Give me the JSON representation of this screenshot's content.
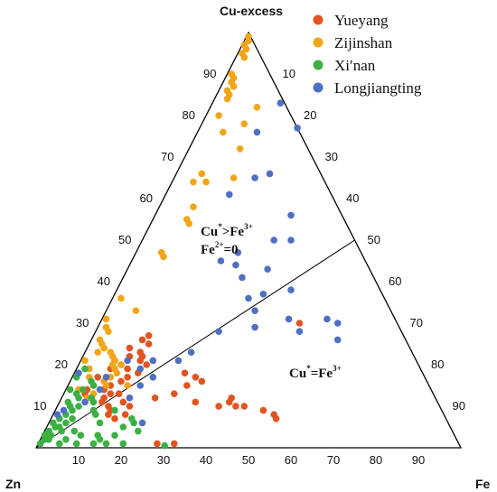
{
  "chart_data": {
    "type": "ternary-scatter",
    "axes": {
      "top": "Cu-excess",
      "left": "Zn",
      "right": "Fe"
    },
    "ticks": [
      10,
      20,
      30,
      40,
      50,
      60,
      70,
      80,
      90
    ],
    "regions": [
      {
        "main": "Cu",
        "sup1": "*",
        "rel": ">Fe",
        "sup2": "3+",
        "line2": "Fe",
        "sup3": "2+",
        "eq": "=0"
      },
      {
        "main": "Cu",
        "sup1": "*",
        "rel": "=Fe",
        "sup2": "3+"
      }
    ],
    "divider": {
      "from": "Zn",
      "to": {
        "cu": 50,
        "fe": 50
      }
    },
    "legend_position": "top-right",
    "series": [
      {
        "name": "Yueyang",
        "color": "#E2541F",
        "points": [
          {
            "cu": 24,
            "fe": 10
          },
          {
            "cu": 26,
            "fe": 12
          },
          {
            "cu": 25,
            "fe": 14
          },
          {
            "cu": 27,
            "fe": 13
          },
          {
            "cu": 23,
            "fe": 13
          },
          {
            "cu": 22,
            "fe": 11
          },
          {
            "cu": 21,
            "fe": 14
          },
          {
            "cu": 20,
            "fe": 16
          },
          {
            "cu": 18,
            "fe": 15
          },
          {
            "cu": 19,
            "fe": 12
          },
          {
            "cu": 17,
            "fe": 13
          },
          {
            "cu": 16,
            "fe": 12
          },
          {
            "cu": 15,
            "fe": 10
          },
          {
            "cu": 14,
            "fe": 9
          },
          {
            "cu": 13,
            "fe": 11
          },
          {
            "cu": 12,
            "fe": 10
          },
          {
            "cu": 11,
            "fe": 10
          },
          {
            "cu": 12,
            "fe": 7
          },
          {
            "cu": 13,
            "fe": 5
          },
          {
            "cu": 14,
            "fe": 5
          },
          {
            "cu": 15,
            "fe": 6
          },
          {
            "cu": 17,
            "fe": 6
          },
          {
            "cu": 19,
            "fe": 8
          },
          {
            "cu": 21,
            "fe": 8
          },
          {
            "cu": 20,
            "fe": 10
          },
          {
            "cu": 10,
            "fe": 12
          },
          {
            "cu": 11,
            "fe": 15
          },
          {
            "cu": 9,
            "fe": 13
          },
          {
            "cu": 8,
            "fe": 13
          },
          {
            "cu": 7,
            "fe": 15
          },
          {
            "cu": 12,
            "fe": 22
          },
          {
            "cu": 13,
            "fe": 26
          },
          {
            "cu": 15,
            "fe": 28
          },
          {
            "cu": 17,
            "fe": 29
          },
          {
            "cu": 18,
            "fe": 26
          },
          {
            "cu": 16,
            "fe": 31
          },
          {
            "cu": 11,
            "fe": 32
          },
          {
            "cu": 10,
            "fe": 38
          },
          {
            "cu": 11,
            "fe": 40
          },
          {
            "cu": 10,
            "fe": 42
          },
          {
            "cu": 12,
            "fe": 40
          },
          {
            "cu": 10,
            "fe": 44
          },
          {
            "cu": 9,
            "fe": 49
          },
          {
            "cu": 8,
            "fe": 52
          },
          {
            "cu": 7,
            "fe": 53
          },
          {
            "cu": 30,
            "fe": 47
          },
          {
            "cu": 1,
            "fe": 32
          },
          {
            "cu": 1,
            "fe": 28
          },
          {
            "cu": 22,
            "fe": 14
          },
          {
            "cu": 13,
            "fe": 13
          },
          {
            "cu": 10,
            "fe": 17
          },
          {
            "cu": 8,
            "fe": 17
          }
        ]
      },
      {
        "name": "Zijinshan",
        "color": "#F2A516",
        "points": [
          {
            "cu": 99,
            "fe": 0.5
          },
          {
            "cu": 98,
            "fe": 1
          },
          {
            "cu": 97,
            "fe": 0.5
          },
          {
            "cu": 96,
            "fe": 1.5
          },
          {
            "cu": 95,
            "fe": 1
          },
          {
            "cu": 94,
            "fe": 2
          },
          {
            "cu": 90,
            "fe": 1
          },
          {
            "cu": 89,
            "fe": 2
          },
          {
            "cu": 88,
            "fe": 2
          },
          {
            "cu": 87,
            "fe": 3
          },
          {
            "cu": 86,
            "fe": 2
          },
          {
            "cu": 85,
            "fe": 3
          },
          {
            "cu": 84,
            "fe": 3
          },
          {
            "cu": 80,
            "fe": 3
          },
          {
            "cu": 76,
            "fe": 6
          },
          {
            "cu": 78,
            "fe": 10
          },
          {
            "cu": 82,
            "fe": 11
          },
          {
            "cu": 72,
            "fe": 12
          },
          {
            "cu": 66,
            "fe": 6
          },
          {
            "cu": 64,
            "fe": 5
          },
          {
            "cu": 64,
            "fe": 8
          },
          {
            "cu": 65,
            "fe": 14
          },
          {
            "cu": 58,
            "fe": 8
          },
          {
            "cu": 55,
            "fe": 8
          },
          {
            "cu": 54,
            "fe": 9
          },
          {
            "cu": 47,
            "fe": 6
          },
          {
            "cu": 46,
            "fe": 7
          },
          {
            "cu": 36,
            "fe": 2
          },
          {
            "cu": 31,
            "fe": 1
          },
          {
            "cu": 29,
            "fe": 2
          },
          {
            "cu": 28,
            "fe": 3
          },
          {
            "cu": 26,
            "fe": 2
          },
          {
            "cu": 25,
            "fe": 3
          },
          {
            "cu": 24,
            "fe": 4
          },
          {
            "cu": 23,
            "fe": 3
          },
          {
            "cu": 23,
            "fe": 6
          },
          {
            "cu": 22,
            "fe": 7
          },
          {
            "cu": 21,
            "fe": 8
          },
          {
            "cu": 20,
            "fe": 8
          },
          {
            "cu": 20,
            "fe": 10
          },
          {
            "cu": 19,
            "fe": 9
          },
          {
            "cu": 18,
            "fe": 10
          },
          {
            "cu": 17,
            "fe": 9
          },
          {
            "cu": 16,
            "fe": 8
          },
          {
            "cu": 15,
            "fe": 9
          },
          {
            "cu": 13,
            "fe": 7
          },
          {
            "cu": 12,
            "fe": 6
          },
          {
            "cu": 19,
            "fe": 3
          },
          {
            "cu": 17,
            "fe": 4
          },
          {
            "cu": 21,
            "fe": 1
          },
          {
            "cu": 14,
            "fe": 3
          },
          {
            "cu": 33,
            "fe": 7
          },
          {
            "cu": 15,
            "fe": 14
          }
        ]
      },
      {
        "name": "Xi′nan",
        "color": "#3CB043",
        "points": [
          {
            "cu": 1,
            "fe": 0.5
          },
          {
            "cu": 2,
            "fe": 1
          },
          {
            "cu": 3,
            "fe": 0.5
          },
          {
            "cu": 2,
            "fe": 2
          },
          {
            "cu": 4,
            "fe": 1
          },
          {
            "cu": 3,
            "fe": 2
          },
          {
            "cu": 5,
            "fe": 2
          },
          {
            "cu": 6,
            "fe": 1
          },
          {
            "cu": 5,
            "fe": 3
          },
          {
            "cu": 7,
            "fe": 2
          },
          {
            "cu": 4,
            "fe": 4
          },
          {
            "cu": 6,
            "fe": 4
          },
          {
            "cu": 8,
            "fe": 3
          },
          {
            "cu": 7,
            "fe": 5
          },
          {
            "cu": 9,
            "fe": 4
          },
          {
            "cu": 10,
            "fe": 3
          },
          {
            "cu": 11,
            "fe": 2
          },
          {
            "cu": 10,
            "fe": 5
          },
          {
            "cu": 12,
            "fe": 4
          },
          {
            "cu": 13,
            "fe": 3
          },
          {
            "cu": 14,
            "fe": 4
          },
          {
            "cu": 12,
            "fe": 7
          },
          {
            "cu": 15,
            "fe": 6
          },
          {
            "cu": 16,
            "fe": 5
          },
          {
            "cu": 11,
            "fe": 8
          },
          {
            "cu": 9,
            "fe": 9
          },
          {
            "cu": 8,
            "fe": 10
          },
          {
            "cu": 1,
            "fe": 5
          },
          {
            "cu": 1,
            "fe": 9
          },
          {
            "cu": 1,
            "fe": 13
          },
          {
            "cu": 1,
            "fe": 16
          },
          {
            "cu": 1,
            "fe": 20
          },
          {
            "cu": 0.5,
            "fe": 30
          },
          {
            "cu": 3,
            "fe": 9
          },
          {
            "cu": 3,
            "fe": 13
          },
          {
            "cu": 3,
            "fe": 17
          },
          {
            "cu": 5,
            "fe": 18
          },
          {
            "cu": 4,
            "fe": 22
          },
          {
            "cu": 6,
            "fe": 20
          },
          {
            "cu": 7,
            "fe": 19
          },
          {
            "cu": 2,
            "fe": 6
          },
          {
            "cu": 14,
            "fe": 1
          },
          {
            "cu": 17,
            "fe": 1
          },
          {
            "cu": 19,
            "fe": 2
          },
          {
            "cu": 6,
            "fe": 12
          },
          {
            "cu": 9,
            "fe": 14
          },
          {
            "cu": 4,
            "fe": 7
          },
          {
            "cu": 2,
            "fe": 14
          }
        ]
      },
      {
        "name": "Longjiangting",
        "color": "#4E6FC4",
        "points": [
          {
            "cu": 83,
            "fe": 16
          },
          {
            "cu": 77,
            "fe": 23
          },
          {
            "cu": 76,
            "fe": 14
          },
          {
            "cu": 66,
            "fe": 22
          },
          {
            "cu": 65,
            "fe": 19
          },
          {
            "cu": 61,
            "fe": 15
          },
          {
            "cu": 56,
            "fe": 32
          },
          {
            "cu": 50,
            "fe": 35
          },
          {
            "cu": 50,
            "fe": 31
          },
          {
            "cu": 47,
            "fe": 24
          },
          {
            "cu": 45,
            "fe": 21
          },
          {
            "cu": 44,
            "fe": 25
          },
          {
            "cu": 43,
            "fe": 33
          },
          {
            "cu": 41,
            "fe": 28
          },
          {
            "cu": 37,
            "fe": 35
          },
          {
            "cu": 38,
            "fe": 41
          },
          {
            "cu": 36,
            "fe": 32
          },
          {
            "cu": 33,
            "fe": 35
          },
          {
            "cu": 29,
            "fe": 37
          },
          {
            "cu": 28,
            "fe": 48
          },
          {
            "cu": 31,
            "fe": 53
          },
          {
            "cu": 30,
            "fe": 56
          },
          {
            "cu": 31,
            "fe": 44
          },
          {
            "cu": 26,
            "fe": 58
          },
          {
            "cu": 28,
            "fe": 29
          },
          {
            "cu": 23,
            "fe": 25
          },
          {
            "cu": 21,
            "fe": 23
          },
          {
            "cu": 19,
            "fe": 15
          },
          {
            "cu": 21,
            "fe": 11
          },
          {
            "cu": 17,
            "fe": 8
          },
          {
            "cu": 14,
            "fe": 8
          },
          {
            "cu": 8,
            "fe": 1
          },
          {
            "cu": 9,
            "fe": 2
          },
          {
            "cu": 12,
            "fe": 16
          },
          {
            "cu": 15,
            "fe": 17
          },
          {
            "cu": 21,
            "fe": 17
          },
          {
            "cu": 11,
            "fe": 6
          },
          {
            "cu": 18,
            "fe": 1
          },
          {
            "cu": 17,
            "fe": 19
          },
          {
            "cu": 6,
            "fe": 22
          }
        ]
      }
    ]
  }
}
